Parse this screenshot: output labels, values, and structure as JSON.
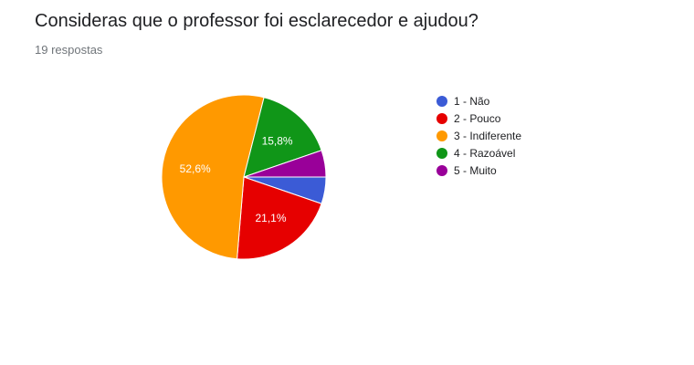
{
  "header": {
    "title": "Consideras que o professor foi esclarecedor e ajudou?",
    "responses": "19 respostas"
  },
  "chart_data": {
    "type": "pie",
    "title": "Consideras que o professor foi esclarecedor e ajudou?",
    "subtitle": "19 respostas",
    "total": 19,
    "legend_position": "right",
    "slices": [
      {
        "label": "1 - Não",
        "count": 1,
        "percent": 5.3,
        "value_label": "",
        "color": "#3b5bd6"
      },
      {
        "label": "2 - Pouco",
        "count": 4,
        "percent": 21.1,
        "value_label": "21,1%",
        "color": "#e60000"
      },
      {
        "label": "3 - Indiferente",
        "count": 10,
        "percent": 52.6,
        "value_label": "52,6%",
        "color": "#ff9900"
      },
      {
        "label": "4 - Razoável",
        "count": 3,
        "percent": 15.8,
        "value_label": "15,8%",
        "color": "#109618"
      },
      {
        "label": "5 - Muito",
        "count": 1,
        "percent": 5.3,
        "value_label": "",
        "color": "#990099"
      }
    ]
  }
}
